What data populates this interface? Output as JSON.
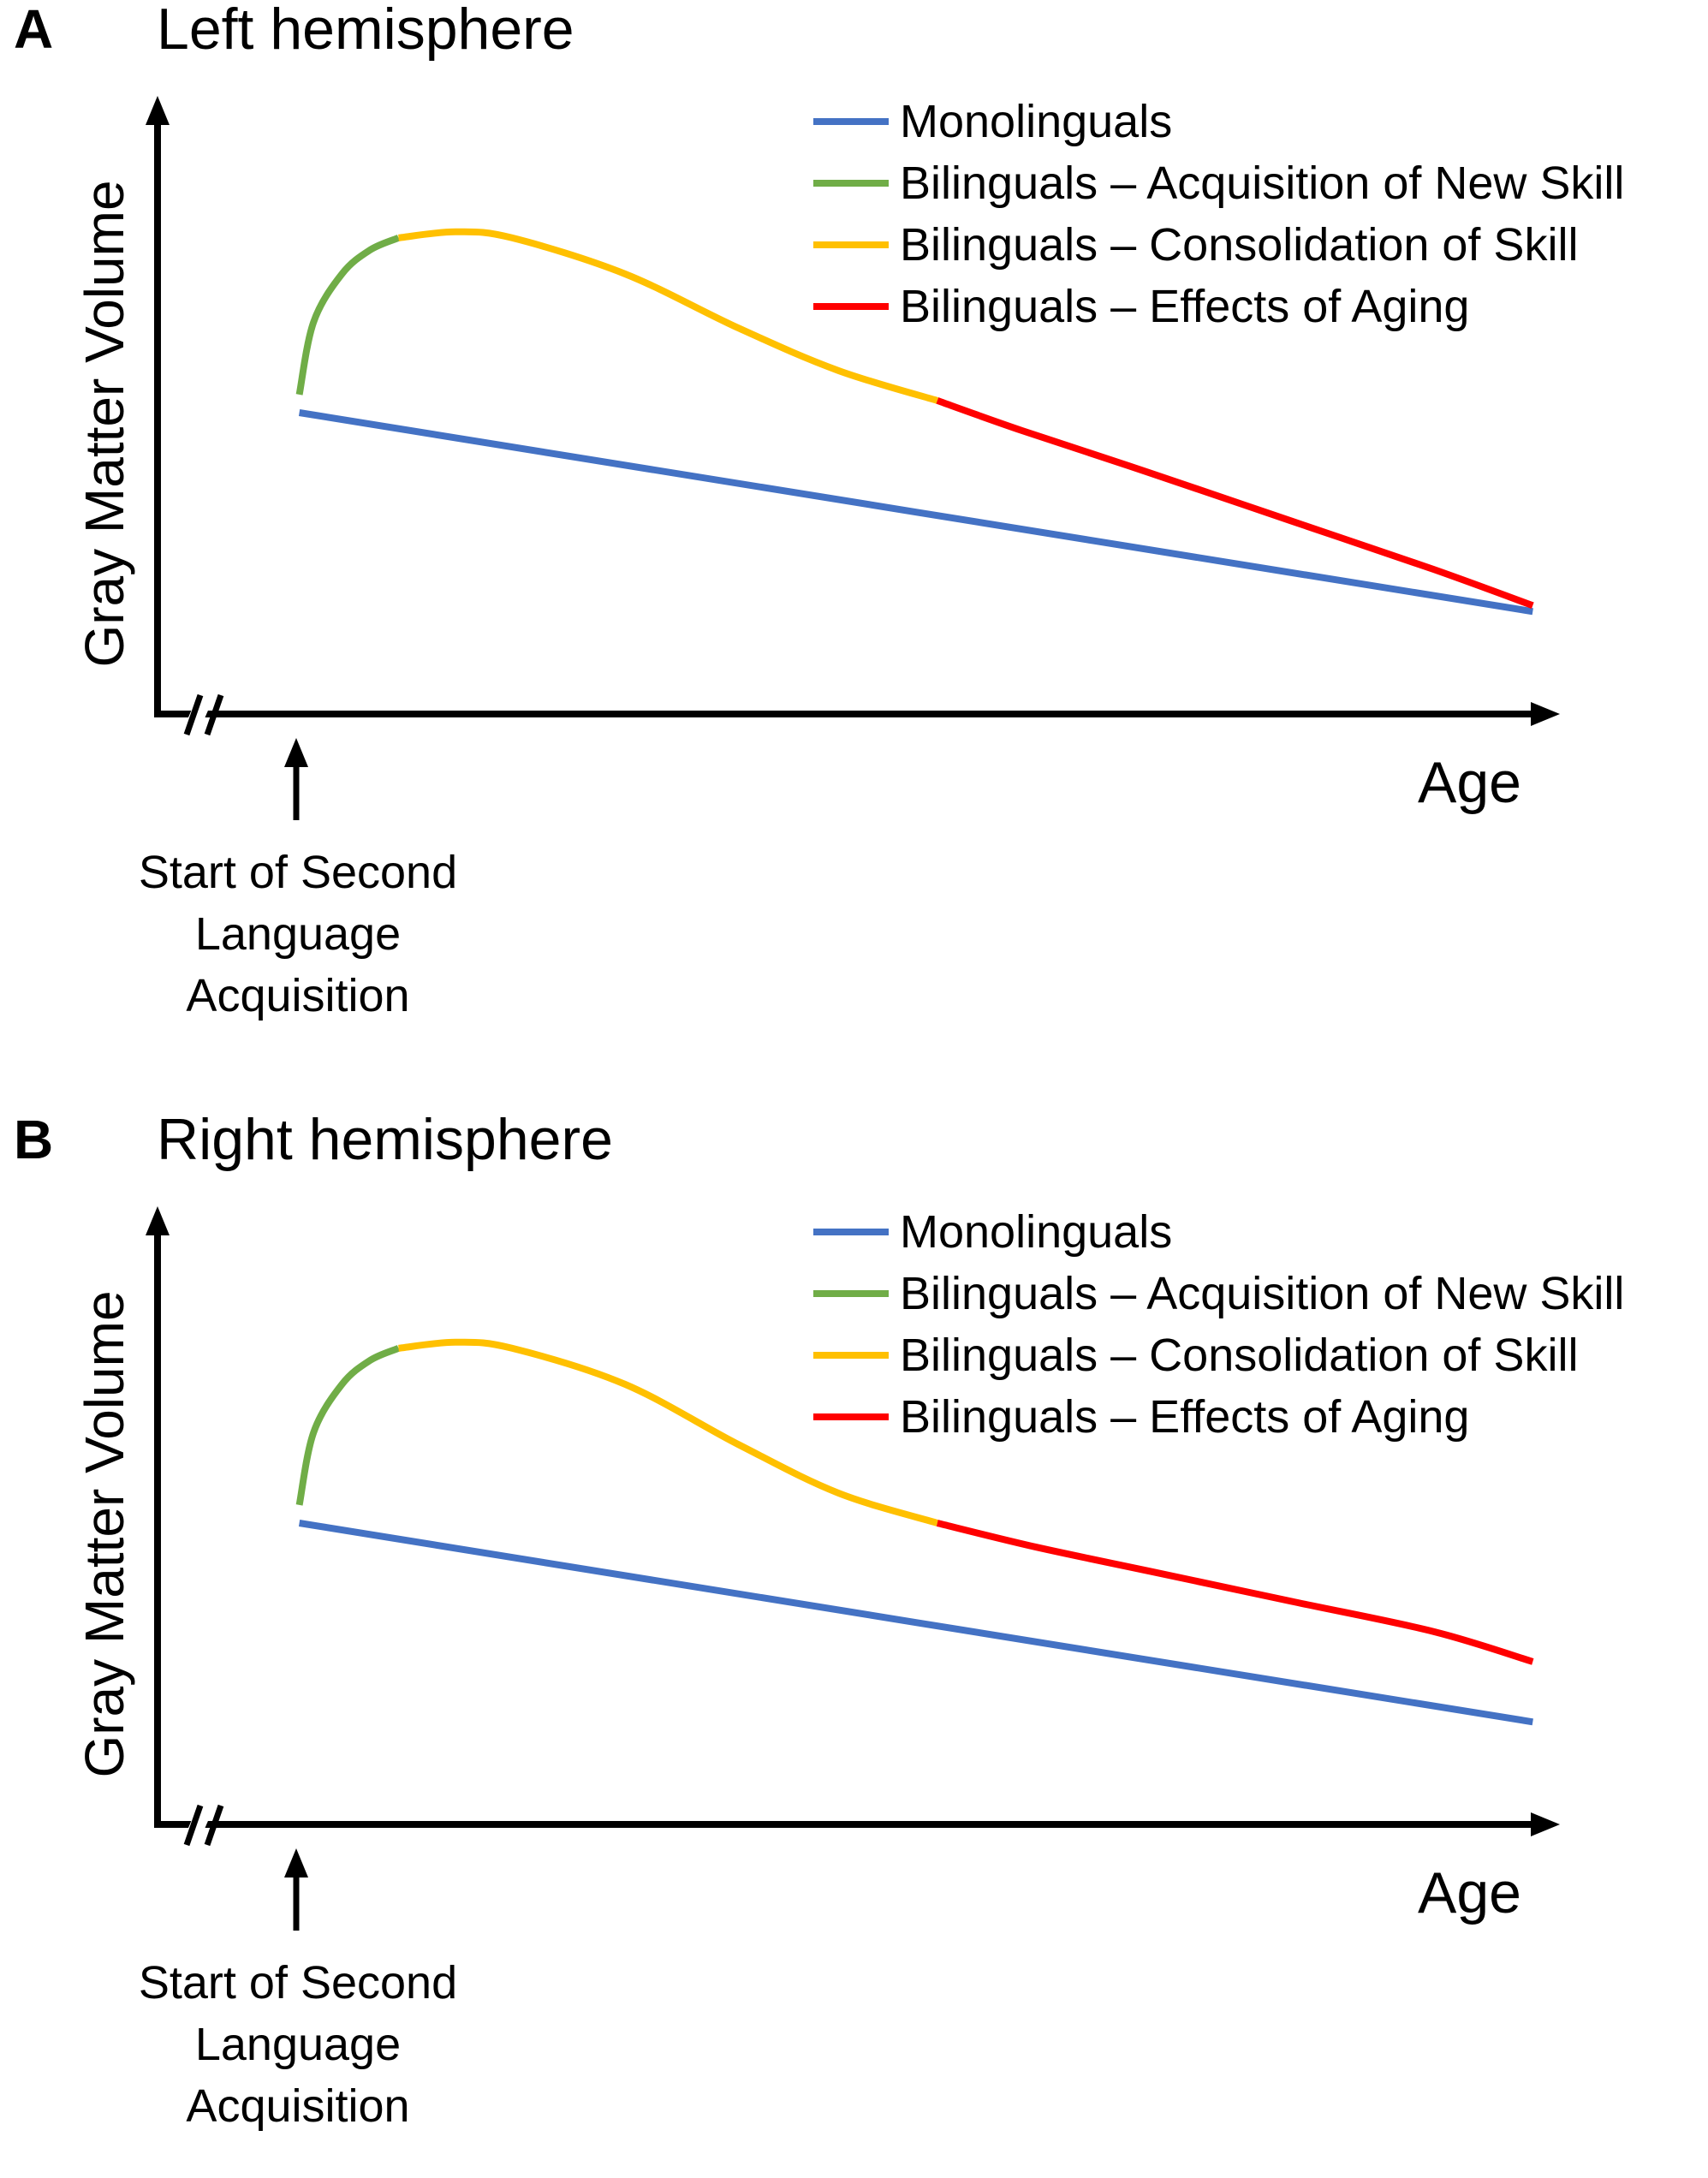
{
  "colors": {
    "monolinguals": "#4472C4",
    "acquisition": "#70AD47",
    "consolidation": "#FFC000",
    "aging": "#FF0000",
    "axis": "#000000"
  },
  "panels": [
    {
      "letter": "A",
      "title": "Left hemisphere",
      "ylabel": "Gray Matter Volume",
      "xlabel": "Age",
      "annotation": [
        "Start of Second",
        "Language",
        "Acquisition"
      ],
      "legend": [
        {
          "label": "Monolinguals",
          "color_key": "monolinguals"
        },
        {
          "label": "Bilinguals – Acquisition of New Skill",
          "color_key": "acquisition"
        },
        {
          "label": "Bilinguals – Consolidation of Skill",
          "color_key": "consolidation"
        },
        {
          "label": "Bilinguals – Effects of Aging",
          "color_key": "aging"
        }
      ]
    },
    {
      "letter": "B",
      "title": "Right hemisphere",
      "ylabel": "Gray Matter Volume",
      "xlabel": "Age",
      "annotation": [
        "Start of Second",
        "Language",
        "Acquisition"
      ],
      "legend": [
        {
          "label": "Monolinguals",
          "color_key": "monolinguals"
        },
        {
          "label": "Bilinguals – Acquisition of New Skill",
          "color_key": "acquisition"
        },
        {
          "label": "Bilinguals – Consolidation of Skill",
          "color_key": "consolidation"
        },
        {
          "label": "Bilinguals – Effects of Aging",
          "color_key": "aging"
        }
      ]
    }
  ],
  "chart_data": [
    {
      "type": "line",
      "title": "Left hemisphere",
      "xlabel": "Age",
      "ylabel": "Gray Matter Volume",
      "xlim": [
        0,
        100
      ],
      "ylim": [
        0,
        100
      ],
      "grid": false,
      "legend_position": "top-right",
      "series": [
        {
          "name": "Monolinguals",
          "color_key": "monolinguals",
          "x": [
            10,
            97
          ],
          "y": [
            50,
            17
          ]
        },
        {
          "name": "Bilinguals – Acquisition of New Skill",
          "color_key": "acquisition",
          "x": [
            10,
            11,
            13,
            15,
            17
          ],
          "y": [
            53,
            65,
            73,
            77,
            79
          ]
        },
        {
          "name": "Bilinguals – Consolidation of Skill",
          "color_key": "consolidation",
          "x": [
            17,
            21,
            25,
            33,
            41,
            48,
            55
          ],
          "y": [
            79,
            80,
            79,
            73,
            64,
            57,
            52
          ]
        },
        {
          "name": "Bilinguals – Effects of Aging",
          "color_key": "aging",
          "x": [
            55,
            61,
            70,
            80,
            90,
            97
          ],
          "y": [
            52,
            47,
            40,
            32,
            24,
            18
          ]
        }
      ]
    },
    {
      "type": "line",
      "title": "Right hemisphere",
      "xlabel": "Age",
      "ylabel": "Gray Matter Volume",
      "xlim": [
        0,
        100
      ],
      "ylim": [
        0,
        100
      ],
      "grid": false,
      "legend_position": "top-right",
      "series": [
        {
          "name": "Monolinguals",
          "color_key": "monolinguals",
          "x": [
            10,
            97
          ],
          "y": [
            50,
            17
          ]
        },
        {
          "name": "Bilinguals – Acquisition of New Skill",
          "color_key": "acquisition",
          "x": [
            10,
            11,
            13,
            15,
            17
          ],
          "y": [
            53,
            65,
            73,
            77,
            79
          ]
        },
        {
          "name": "Bilinguals – Consolidation of Skill",
          "color_key": "consolidation",
          "x": [
            17,
            21,
            25,
            33,
            41,
            48,
            55
          ],
          "y": [
            79,
            80,
            79,
            73,
            63,
            55,
            50
          ]
        },
        {
          "name": "Bilinguals – Effects of Aging",
          "color_key": "aging",
          "x": [
            55,
            62,
            70,
            80,
            90,
            97
          ],
          "y": [
            50,
            46,
            42,
            37,
            32,
            27
          ]
        }
      ]
    }
  ]
}
